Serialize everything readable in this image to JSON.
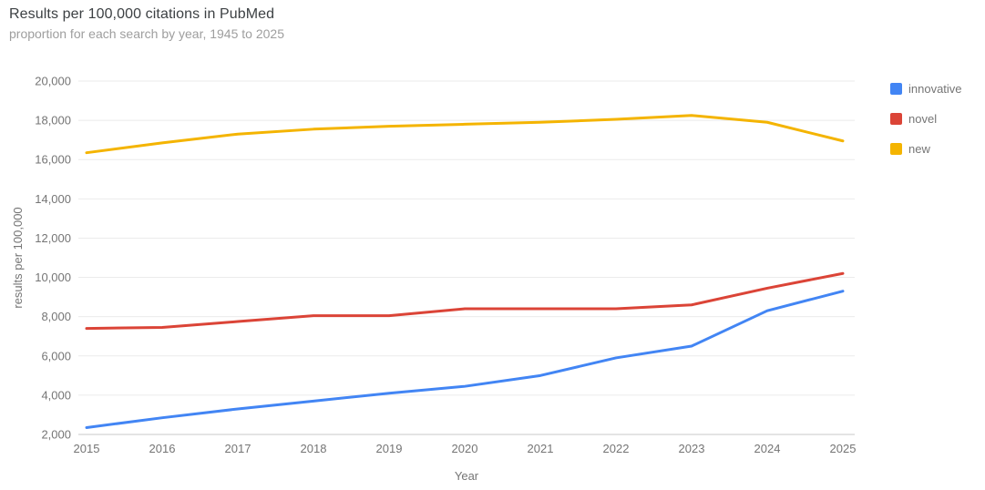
{
  "header": {
    "title": "Results per 100,000 citations in PubMed",
    "subtitle": "proportion for each search by year, 1945 to 2025"
  },
  "chart_data": {
    "type": "line",
    "title": "Results per 100,000 citations in PubMed",
    "subtitle": "proportion for each search by year, 1945 to 2025",
    "xlabel": "Year",
    "ylabel": "results per 100,000",
    "x": [
      2015,
      2016,
      2017,
      2018,
      2019,
      2020,
      2021,
      2022,
      2023,
      2024,
      2025
    ],
    "xtick_labels": [
      "2015",
      "2016",
      "2017",
      "2018",
      "2019",
      "2020",
      "2021",
      "2022",
      "2023",
      "2024",
      "2025"
    ],
    "yticks": [
      2000,
      4000,
      6000,
      8000,
      10000,
      12000,
      14000,
      16000,
      18000,
      20000
    ],
    "ytick_labels": [
      "2,000",
      "4,000",
      "6,000",
      "8,000",
      "10,000",
      "12,000",
      "14,000",
      "16,000",
      "18,000",
      "20,000"
    ],
    "ylim": [
      2000,
      20000
    ],
    "grid": true,
    "legend_position": "right",
    "series": [
      {
        "name": "innovative",
        "color": "#4285F4",
        "values": [
          2350,
          2850,
          3300,
          3700,
          4100,
          4450,
          5000,
          5900,
          6500,
          8300,
          9300
        ]
      },
      {
        "name": "novel",
        "color": "#DB4437",
        "values": [
          7400,
          7450,
          7750,
          8050,
          8050,
          8400,
          8400,
          8400,
          8600,
          9450,
          10200
        ]
      },
      {
        "name": "new",
        "color": "#F4B400",
        "values": [
          16350,
          16850,
          17300,
          17550,
          17700,
          17800,
          17900,
          18050,
          18250,
          17900,
          16950
        ]
      }
    ]
  }
}
